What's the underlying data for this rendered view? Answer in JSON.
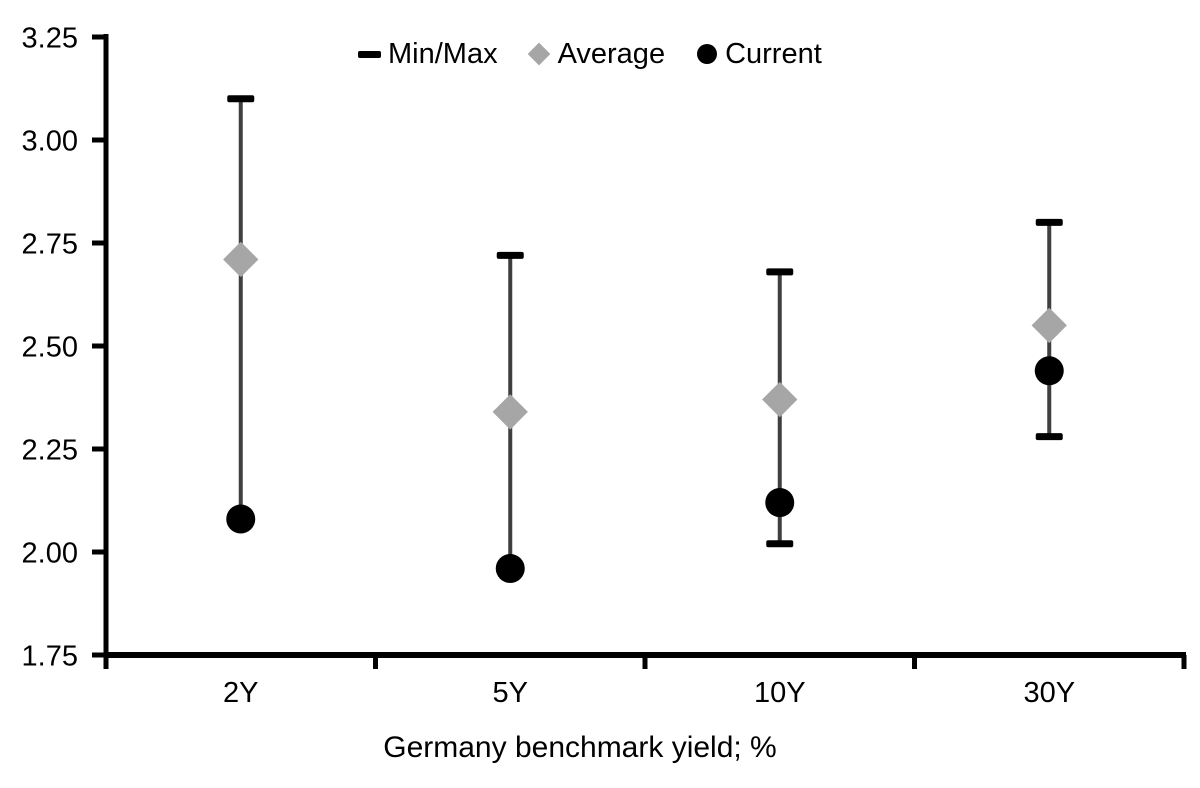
{
  "chart_data": {
    "type": "range-dot",
    "title": "",
    "xlabel": "Germany benchmark yield; %",
    "ylabel": "",
    "categories": [
      "2Y",
      "5Y",
      "10Y",
      "30Y"
    ],
    "series": [
      {
        "name": "Min/Max",
        "marker": "dash",
        "min": [
          2.08,
          1.96,
          2.02,
          2.28
        ],
        "max": [
          3.1,
          2.72,
          2.68,
          2.8
        ]
      },
      {
        "name": "Average",
        "marker": "diamond",
        "values": [
          2.71,
          2.34,
          2.37,
          2.55
        ]
      },
      {
        "name": "Current",
        "marker": "circle",
        "values": [
          2.08,
          1.96,
          2.12,
          2.44
        ]
      }
    ],
    "ylim": [
      1.75,
      3.25
    ],
    "ytick_step": 0.25,
    "y_ticks": [
      "1.75",
      "2.00",
      "2.25",
      "2.50",
      "2.75",
      "3.00",
      "3.25"
    ],
    "grid": false,
    "legend_position": "top-center",
    "colors": {
      "min_max": "#000000",
      "average": "#a6a6a6",
      "current": "#000000",
      "range_line": "#3f3f3f",
      "axis": "#000000",
      "text": "#000000",
      "background": "#ffffff"
    }
  },
  "legend": [
    {
      "label": "Min/Max",
      "marker": "dash"
    },
    {
      "label": "Average",
      "marker": "diamond"
    },
    {
      "label": "Current",
      "marker": "circle"
    }
  ]
}
